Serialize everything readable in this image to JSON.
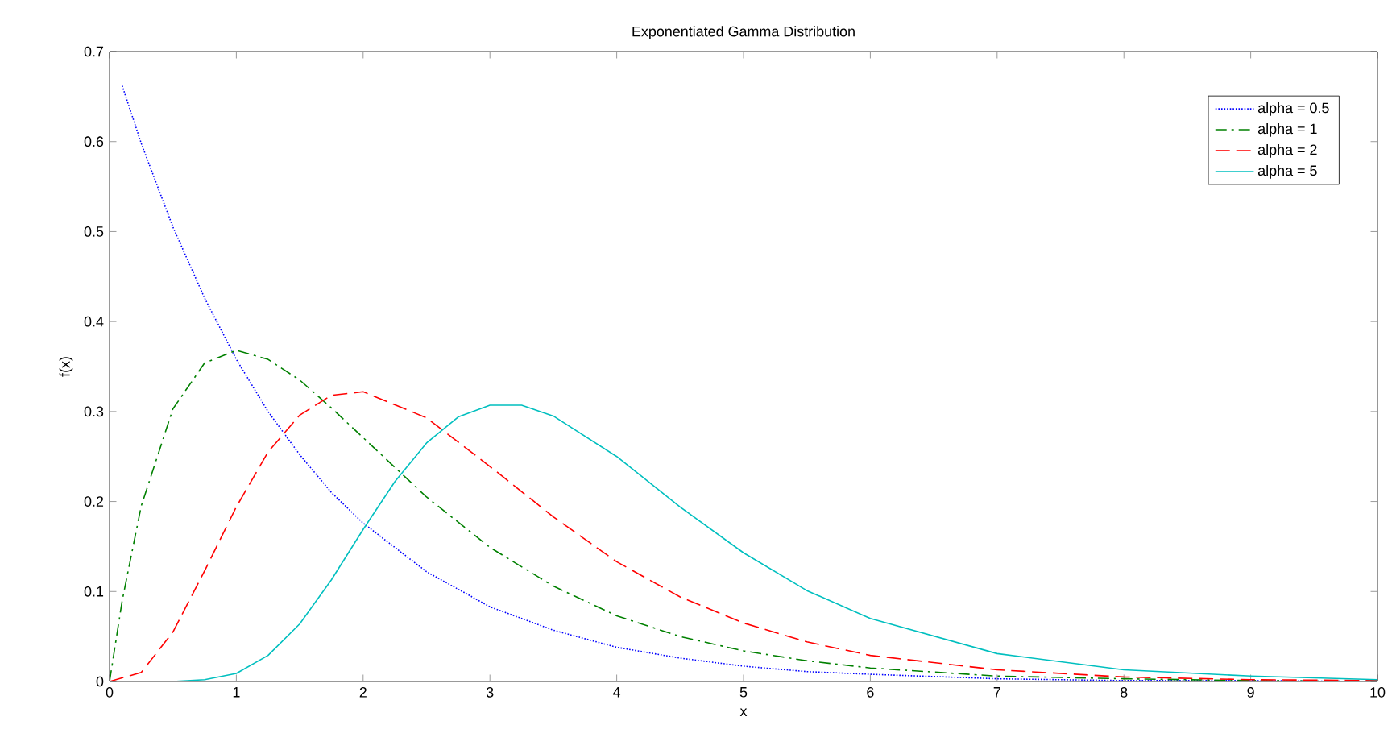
{
  "chart_data": {
    "type": "line",
    "title": "Exponentiated Gamma Distribution",
    "xlabel": "x",
    "ylabel": "f(x)",
    "xlim": [
      0,
      10
    ],
    "ylim": [
      0,
      0.7
    ],
    "xticks": [
      0,
      1,
      2,
      3,
      4,
      5,
      6,
      7,
      8,
      9,
      10
    ],
    "yticks": [
      0,
      0.1,
      0.2,
      0.3,
      0.4,
      0.5,
      0.6,
      0.7
    ],
    "legend": "top right",
    "grid": false,
    "series": [
      {
        "name": "alpha = 0.5",
        "color": "#0000ff",
        "line_style": "dotted",
        "x": [
          0.1,
          0.25,
          0.5,
          0.75,
          1,
          1.25,
          1.5,
          1.75,
          2,
          2.5,
          3,
          3.5,
          4,
          4.5,
          5,
          5.5,
          6,
          7,
          8,
          9,
          10
        ],
        "values": [
          0.662,
          0.598,
          0.505,
          0.426,
          0.358,
          0.3,
          0.252,
          0.21,
          0.176,
          0.122,
          0.083,
          0.057,
          0.038,
          0.026,
          0.017,
          0.011,
          0.008,
          0.003,
          0.001,
          0.001,
          0.0
        ]
      },
      {
        "name": "alpha = 1",
        "color": "#008000",
        "line_style": "dashdot",
        "x": [
          0,
          0.1,
          0.25,
          0.5,
          0.75,
          1,
          1.25,
          1.5,
          1.75,
          2,
          2.5,
          3,
          3.5,
          4,
          4.5,
          5,
          5.5,
          6,
          7,
          8,
          9,
          10
        ],
        "values": [
          0,
          0.09,
          0.195,
          0.303,
          0.354,
          0.368,
          0.358,
          0.335,
          0.304,
          0.271,
          0.205,
          0.149,
          0.106,
          0.073,
          0.05,
          0.034,
          0.023,
          0.015,
          0.006,
          0.003,
          0.001,
          0.0
        ]
      },
      {
        "name": "alpha = 2",
        "color": "#ff0000",
        "line_style": "dashed",
        "x": [
          0,
          0.25,
          0.5,
          0.75,
          1,
          1.25,
          1.5,
          1.75,
          2,
          2.5,
          3,
          3.5,
          4,
          4.5,
          5,
          5.5,
          6,
          7,
          8,
          9,
          10
        ],
        "values": [
          0,
          0.01,
          0.055,
          0.123,
          0.194,
          0.255,
          0.296,
          0.318,
          0.322,
          0.293,
          0.239,
          0.183,
          0.133,
          0.094,
          0.065,
          0.044,
          0.029,
          0.013,
          0.005,
          0.002,
          0.001
        ]
      },
      {
        "name": "alpha = 5",
        "color": "#00bfbf",
        "line_style": "solid",
        "x": [
          0,
          0.25,
          0.5,
          0.75,
          1,
          1.25,
          1.5,
          1.75,
          2,
          2.25,
          2.5,
          2.75,
          3,
          3.25,
          3.5,
          4,
          4.5,
          5,
          5.5,
          6,
          7,
          8,
          9,
          10
        ],
        "values": [
          0,
          0,
          0.0,
          0.002,
          0.009,
          0.029,
          0.064,
          0.113,
          0.169,
          0.222,
          0.265,
          0.294,
          0.307,
          0.307,
          0.295,
          0.25,
          0.194,
          0.143,
          0.101,
          0.07,
          0.031,
          0.013,
          0.006,
          0.002
        ]
      }
    ]
  }
}
